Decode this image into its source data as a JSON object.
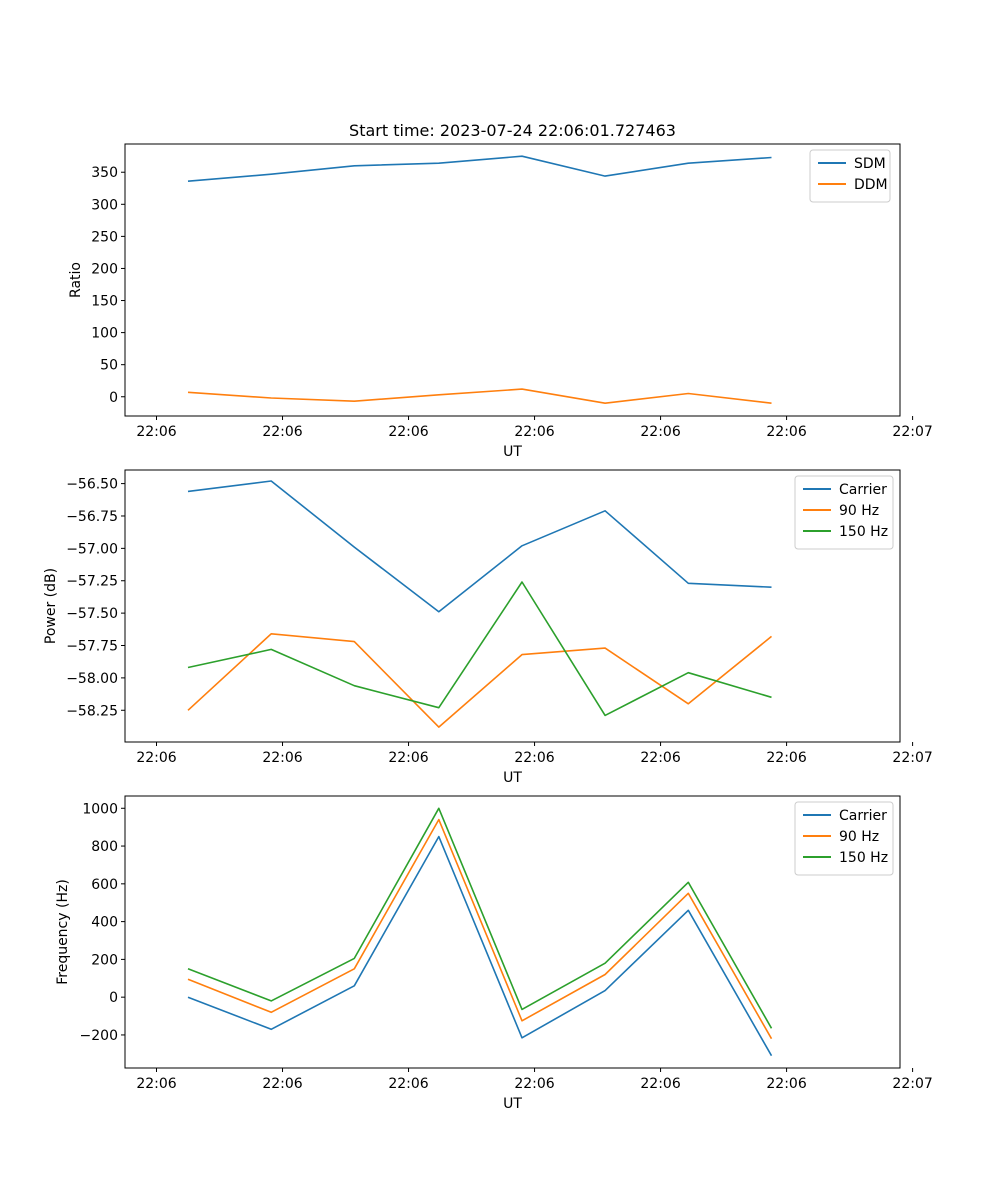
{
  "chart_data": [
    {
      "type": "line",
      "title": "Start time: 2023-07-24 22:06:01.727463",
      "xlabel": "UT",
      "ylabel": "Ratio",
      "legend_position": "top-right",
      "grid": false,
      "xlim": [
        -0.25,
        5.9
      ],
      "ylim": [
        -30,
        394
      ],
      "x": [
        0.25,
        0.91,
        1.57,
        2.24,
        2.9,
        3.56,
        4.22,
        4.88
      ],
      "xticks": [
        0,
        1,
        2,
        3,
        4,
        5,
        6
      ],
      "xtick_labels": [
        "22:06",
        "22:06",
        "22:06",
        "22:06",
        "22:06",
        "22:06",
        "22:07"
      ],
      "yticks": [
        0,
        50,
        100,
        150,
        200,
        250,
        300,
        350
      ],
      "ytick_labels": [
        "0",
        "50",
        "100",
        "150",
        "200",
        "250",
        "300",
        "350"
      ],
      "series": [
        {
          "name": "SDM",
          "color": "#1f77b4",
          "values": [
            336,
            347,
            360,
            364,
            375,
            344,
            364,
            373
          ]
        },
        {
          "name": "DDM",
          "color": "#ff7f0e",
          "values": [
            7,
            -2,
            -7,
            3,
            12,
            -10,
            5,
            -10
          ]
        }
      ]
    },
    {
      "type": "line",
      "title": "",
      "xlabel": "UT",
      "ylabel": "Power (dB)",
      "legend_position": "top-right",
      "grid": false,
      "xlim": [
        -0.25,
        5.9
      ],
      "ylim": [
        -58.495,
        -56.395
      ],
      "x": [
        0.25,
        0.91,
        1.57,
        2.24,
        2.9,
        3.56,
        4.22,
        4.88
      ],
      "xticks": [
        0,
        1,
        2,
        3,
        4,
        5,
        6
      ],
      "xtick_labels": [
        "22:06",
        "22:06",
        "22:06",
        "22:06",
        "22:06",
        "22:06",
        "22:07"
      ],
      "yticks": [
        -56.5,
        -56.75,
        -57.0,
        -57.25,
        -57.5,
        -57.75,
        -58.0,
        -58.25
      ],
      "ytick_labels": [
        "−56.50",
        "−56.75",
        "−57.00",
        "−57.25",
        "−57.50",
        "−57.75",
        "−58.00",
        "−58.25"
      ],
      "series": [
        {
          "name": "Carrier",
          "color": "#1f77b4",
          "values": [
            -56.56,
            -56.48,
            -56.99,
            -57.49,
            -56.98,
            -56.71,
            -57.27,
            -57.3
          ]
        },
        {
          "name": "90 Hz",
          "color": "#ff7f0e",
          "values": [
            -58.25,
            -57.66,
            -57.72,
            -58.38,
            -57.82,
            -57.77,
            -58.2,
            -57.68
          ]
        },
        {
          "name": "150 Hz",
          "color": "#2ca02c",
          "values": [
            -57.92,
            -57.78,
            -58.06,
            -58.23,
            -57.26,
            -58.29,
            -57.96,
            -58.15
          ]
        }
      ]
    },
    {
      "type": "line",
      "title": "",
      "xlabel": "UT",
      "ylabel": "Frequency (Hz)",
      "legend_position": "top-right",
      "grid": false,
      "xlim": [
        -0.25,
        5.9
      ],
      "ylim": [
        -375,
        1065
      ],
      "x": [
        0.25,
        0.91,
        1.57,
        2.24,
        2.9,
        3.56,
        4.22,
        4.88
      ],
      "xticks": [
        0,
        1,
        2,
        3,
        4,
        5,
        6
      ],
      "xtick_labels": [
        "22:06",
        "22:06",
        "22:06",
        "22:06",
        "22:06",
        "22:06",
        "22:07"
      ],
      "yticks": [
        -200,
        0,
        200,
        400,
        600,
        800,
        1000
      ],
      "ytick_labels": [
        "−200",
        "0",
        "200",
        "400",
        "600",
        "800",
        "1000"
      ],
      "series": [
        {
          "name": "Carrier",
          "color": "#1f77b4",
          "values": [
            0,
            -170,
            60,
            850,
            -215,
            35,
            460,
            -310
          ]
        },
        {
          "name": "90 Hz",
          "color": "#ff7f0e",
          "values": [
            95,
            -80,
            150,
            940,
            -125,
            120,
            550,
            -220
          ]
        },
        {
          "name": "150 Hz",
          "color": "#2ca02c",
          "values": [
            150,
            -20,
            205,
            1000,
            -65,
            180,
            608,
            -165
          ]
        }
      ]
    }
  ]
}
